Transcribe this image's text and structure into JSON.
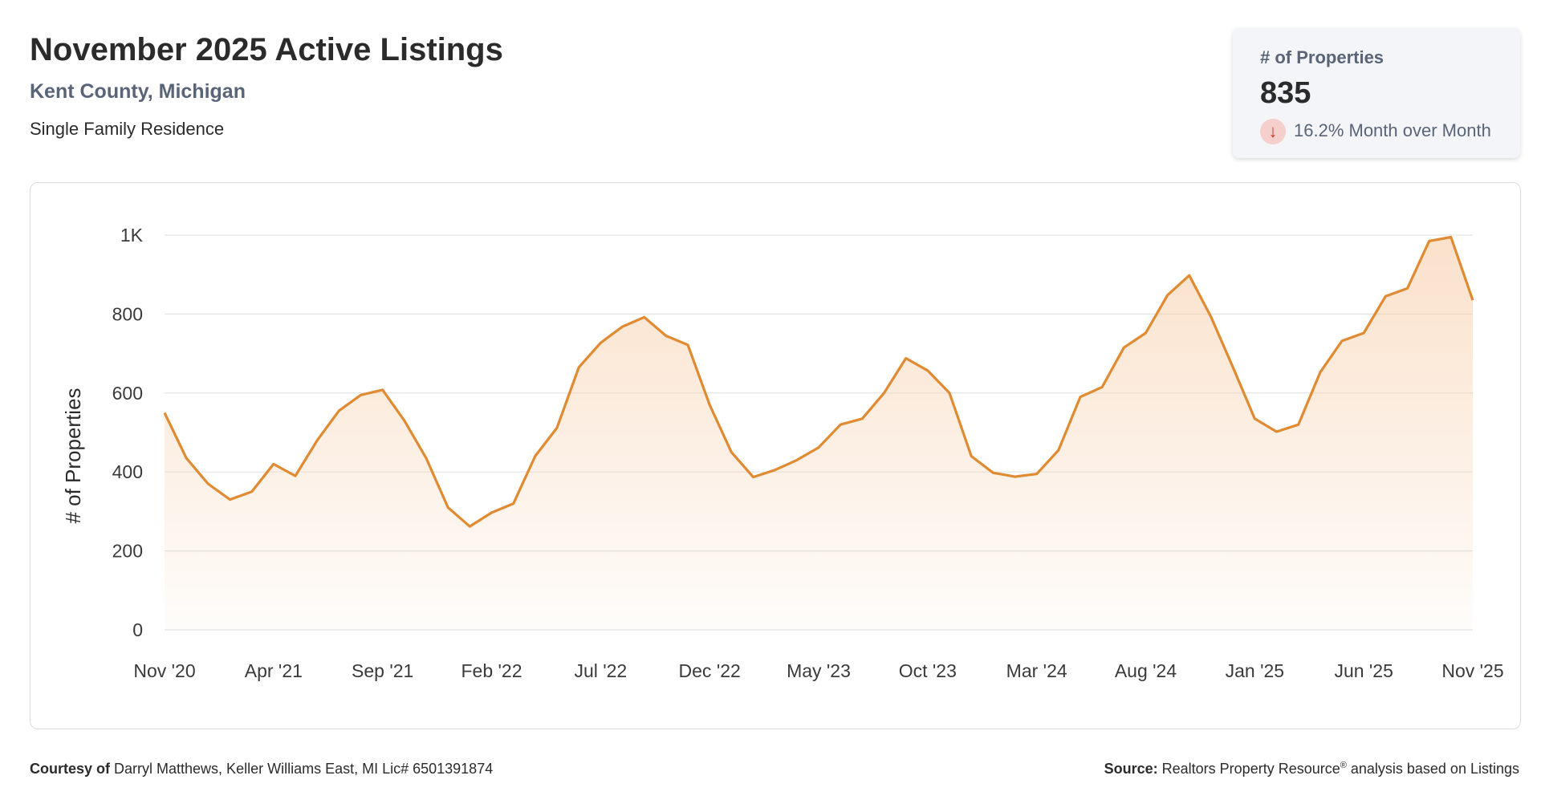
{
  "header": {
    "title": "November 2025 Active Listings",
    "subtitle": "Kent County, Michigan",
    "property_type": "Single Family Residence"
  },
  "stat_card": {
    "label": "# of Properties",
    "value": "835",
    "change_icon": "arrow-down-icon",
    "change_text": "16.2% Month over Month",
    "change_color": "#c0392b"
  },
  "footer": {
    "courtesy_label": "Courtesy of",
    "courtesy_text": "Darryl Matthews, Keller Williams East, MI Lic# 6501391874",
    "source_label": "Source:",
    "source_text_before": "Realtors Property Resource",
    "source_sup": "®",
    "source_text_after": "analysis based on Listings"
  },
  "chart_data": {
    "type": "area",
    "title": "",
    "xlabel": "",
    "ylabel": "# of Properties",
    "ylim": [
      0,
      1000
    ],
    "yticks": [
      0,
      200,
      400,
      600,
      800,
      1000
    ],
    "ytick_labels": [
      "0",
      "200",
      "400",
      "600",
      "800",
      "1K"
    ],
    "xtick_labels": [
      "Nov '20",
      "Apr '21",
      "Sep '21",
      "Feb '22",
      "Jul '22",
      "Dec '22",
      "May '23",
      "Oct '23",
      "Mar '24",
      "Aug '24",
      "Jan '25",
      "Jun '25",
      "Nov '25"
    ],
    "xtick_index_step": 5,
    "grid": true,
    "line_color": "#e08a32",
    "fill_color": "#f6c9a0",
    "series": [
      {
        "values": [
          550,
          435,
          370,
          330,
          350,
          420,
          390,
          480,
          555,
          595,
          608,
          530,
          435,
          310,
          262,
          297,
          320,
          440,
          512,
          665,
          727,
          768,
          792,
          745,
          722,
          570,
          450,
          387,
          405,
          430,
          462,
          520,
          535,
          600,
          688,
          657,
          600,
          440,
          398,
          388,
          395,
          455,
          590,
          615,
          715,
          752,
          848,
          898,
          792,
          665,
          535,
          502,
          520,
          652,
          732,
          752,
          845,
          865,
          985,
          995,
          835
        ]
      }
    ]
  }
}
